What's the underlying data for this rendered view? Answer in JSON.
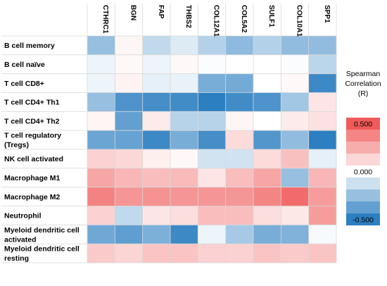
{
  "chart_data": {
    "type": "heatmap",
    "columns": [
      "CTHRC1",
      "BGN",
      "FAP",
      "THBS2",
      "COL12A1",
      "COL5A2",
      "SULF1",
      "COL10A1",
      "SPP1"
    ],
    "rows": [
      [
        "B cell memory"
      ],
      [
        "B cell naïve"
      ],
      [
        "T cell CD8+"
      ],
      [
        "T cell CD4+ Th1"
      ],
      [
        "T cell CD4+ Th2"
      ],
      [
        "T cell regulatory",
        "(Tregs)"
      ],
      [
        "NK cell activated"
      ],
      [
        "Macrophage M1"
      ],
      [
        "Macrophage M2"
      ],
      [
        "Neutrophil"
      ],
      [
        "Myeloid dendritic cell",
        "activated"
      ],
      [
        "Myeloid dendritic cell",
        "resting"
      ]
    ],
    "values": [
      [
        -0.25,
        0.03,
        -0.15,
        -0.08,
        -0.18,
        -0.27,
        -0.18,
        -0.26,
        -0.26
      ],
      [
        -0.04,
        0.02,
        -0.04,
        0.02,
        -0.01,
        0.0,
        0.0,
        -0.01,
        -0.16
      ],
      [
        -0.04,
        0.04,
        -0.06,
        -0.05,
        -0.32,
        -0.33,
        0.0,
        0.02,
        -0.46
      ],
      [
        -0.25,
        -0.42,
        -0.44,
        -0.45,
        -0.56,
        -0.45,
        -0.42,
        -0.22,
        0.08
      ],
      [
        0.03,
        -0.37,
        0.06,
        -0.17,
        -0.17,
        0.03,
        0.0,
        0.06,
        0.09
      ],
      [
        -0.35,
        -0.36,
        -0.46,
        -0.32,
        -0.44,
        0.11,
        -0.41,
        -0.26,
        -0.52
      ],
      [
        0.14,
        0.12,
        0.05,
        0.02,
        -0.11,
        -0.11,
        0.11,
        0.19,
        -0.06
      ],
      [
        0.27,
        0.22,
        0.2,
        0.21,
        0.08,
        0.2,
        0.27,
        -0.25,
        0.22
      ],
      [
        0.38,
        0.32,
        0.33,
        0.32,
        0.32,
        0.32,
        0.37,
        0.45,
        0.3
      ],
      [
        0.14,
        -0.15,
        0.08,
        0.1,
        0.2,
        0.2,
        0.1,
        0.07,
        0.3
      ],
      [
        -0.34,
        -0.38,
        -0.31,
        -0.46,
        -0.04,
        -0.21,
        -0.32,
        -0.3,
        -0.02
      ],
      [
        0.16,
        0.13,
        0.18,
        0.18,
        0.14,
        0.14,
        0.18,
        0.16,
        0.18
      ]
    ],
    "colorscale": {
      "min": -0.5,
      "mid": 0.0,
      "max": 0.5,
      "low_color": "#2c7fc1",
      "mid_color": "#ffffff",
      "high_color": "#f05a5a"
    },
    "legend": {
      "title_lines": [
        "Spearman",
        "Correlation",
        "(R)"
      ],
      "ticks": [
        "0.500",
        "0.000",
        "-0.500"
      ],
      "swatch_values": [
        0.5,
        0.37,
        0.25,
        0.12,
        0.0,
        -0.12,
        -0.25,
        -0.37,
        -0.5
      ],
      "placement": "right"
    }
  }
}
